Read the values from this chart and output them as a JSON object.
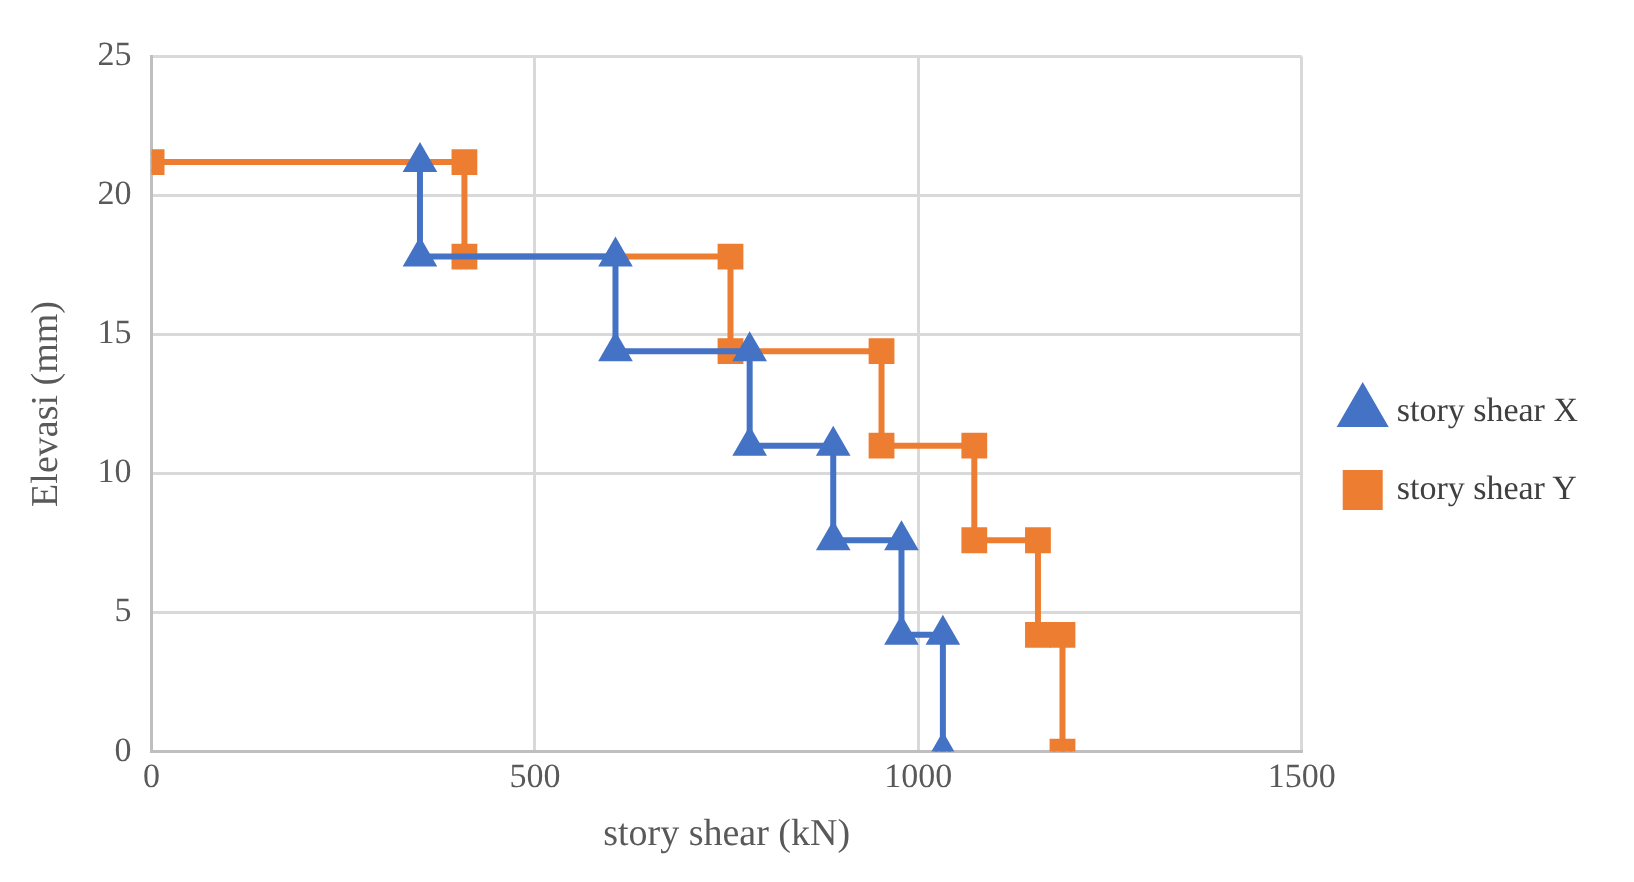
{
  "chart_data": {
    "type": "line",
    "xlabel": "story shear (kN)",
    "ylabel": "Elevasi (mm)",
    "xlim": [
      0,
      1500
    ],
    "xticks": [
      0,
      500,
      1000,
      1500
    ],
    "ylim": [
      0,
      25
    ],
    "yticks": [
      0,
      5,
      10,
      15,
      20,
      25
    ],
    "grid": true,
    "legend": "right",
    "line_style": "solid",
    "series": [
      {
        "name": "story shear X",
        "color": "#4472c4",
        "marker": "triangle",
        "x": [
          350,
          350,
          605,
          605,
          780,
          780,
          889,
          889,
          978,
          978,
          1032,
          1032
        ],
        "values": [
          21.2,
          17.8,
          17.8,
          14.4,
          14.4,
          11,
          11,
          7.6,
          7.6,
          4.2,
          4.2,
          0
        ]
      },
      {
        "name": "story shear Y",
        "color": "#ed7d31",
        "marker": "square",
        "x": [
          0,
          408,
          408,
          755,
          755,
          952,
          952,
          1073,
          1073,
          1156,
          1156,
          1188,
          1188
        ],
        "values": [
          21.2,
          21.2,
          17.8,
          17.8,
          14.4,
          14.4,
          11,
          11,
          7.6,
          7.6,
          4.2,
          4.2,
          0
        ]
      }
    ]
  }
}
